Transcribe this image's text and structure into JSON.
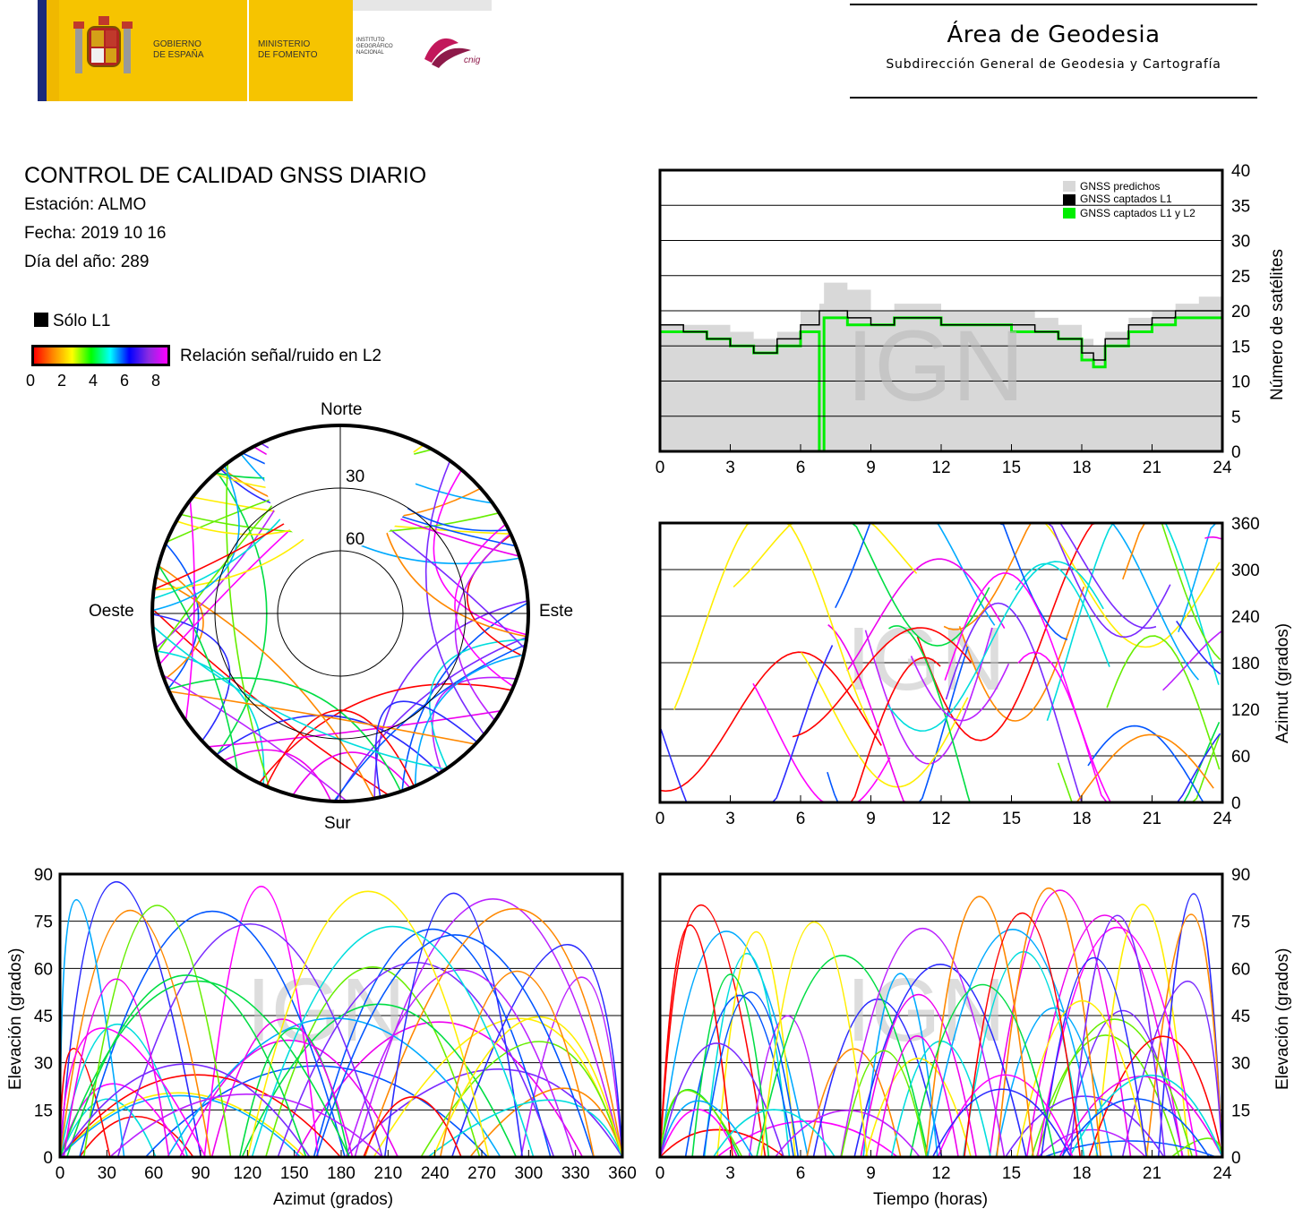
{
  "header": {
    "gov1": "GOBIERNO",
    "gov2": "DE ESPAÑA",
    "min1": "MINISTERIO",
    "min2": "DE FOMENTO",
    "ign1": "INSTITUTO",
    "ign2": "GEOGRÁFICO",
    "ign3": "NACIONAL",
    "cnig": "cnig",
    "area": "Área de Geodesia",
    "subarea": "Subdirección General de Geodesia y Cartografía"
  },
  "report": {
    "title": "CONTROL DE CALIDAD GNSS DIARIO",
    "station": "Estación: ALMO",
    "date": "Fecha: 2019 10 16",
    "doy": "Día del año: 289",
    "only_l1": "Sólo L1",
    "snr_label": "Relación señal/ruido en L2",
    "snr_ticks": [
      "0",
      "2",
      "4",
      "6",
      "8"
    ]
  },
  "watermark": "IGN",
  "colors": {
    "predicted": "#d8d8d8",
    "l1": "#000000",
    "l1l2": "#00ee00",
    "snr_scale": [
      "#ff0000",
      "#ffff00",
      "#00ff00",
      "#00ffff",
      "#0000ff",
      "#ff00ff"
    ]
  },
  "chart_data": [
    {
      "id": "satellites",
      "type": "area",
      "xlim": [
        0,
        24
      ],
      "ylim": [
        0,
        40
      ],
      "x_ticks": [
        "0",
        "3",
        "6",
        "9",
        "12",
        "15",
        "18",
        "21",
        "24"
      ],
      "y_ticks": [
        "0",
        "5",
        "10",
        "15",
        "20",
        "25",
        "30",
        "35",
        "40"
      ],
      "ylabel": "Número de satélites",
      "legend": [
        "GNSS predichos",
        "GNSS captados L1",
        "GNSS captados L1 y L2"
      ],
      "legend_position": "top-right",
      "grid": true,
      "x": [
        0,
        1,
        2,
        3,
        4,
        5,
        6,
        6.8,
        7,
        8,
        9,
        10,
        11,
        12,
        13,
        14,
        15,
        16,
        17,
        18,
        18.5,
        19,
        20,
        21,
        22,
        23,
        24
      ],
      "series": [
        {
          "name": "GNSS predichos",
          "values": [
            18,
            18,
            18,
            17,
            16,
            17,
            20,
            21,
            24,
            23,
            20,
            21,
            21,
            20,
            20,
            20,
            20,
            19,
            18,
            16,
            15,
            17,
            19,
            20,
            21,
            22,
            18
          ]
        },
        {
          "name": "GNSS captados L1",
          "values": [
            18,
            17,
            16,
            15,
            14,
            16,
            18,
            20,
            20,
            19,
            18,
            19,
            19,
            18,
            18,
            18,
            18,
            17,
            16,
            14,
            13,
            16,
            18,
            19,
            20,
            20,
            17
          ]
        },
        {
          "name": "GNSS captados L1 y L2",
          "values": [
            17,
            17,
            16,
            15,
            14,
            15,
            17,
            0,
            19,
            18,
            18,
            19,
            19,
            18,
            18,
            18,
            17,
            17,
            16,
            13,
            12,
            15,
            17,
            18,
            19,
            19,
            17
          ]
        }
      ]
    },
    {
      "id": "skyplot",
      "type": "scatter",
      "labels": {
        "n": "Norte",
        "s": "Sur",
        "w": "Oeste",
        "e": "Este"
      },
      "ring_labels": [
        "30",
        "60"
      ]
    },
    {
      "id": "azimuth_time",
      "type": "line",
      "xlim": [
        0,
        24
      ],
      "ylim": [
        0,
        360
      ],
      "x_ticks": [
        "0",
        "3",
        "6",
        "9",
        "12",
        "15",
        "18",
        "21",
        "24"
      ],
      "y_ticks": [
        "0",
        "60",
        "120",
        "180",
        "240",
        "300",
        "360"
      ],
      "ylabel": "Azimut (grados)",
      "grid": true
    },
    {
      "id": "elev_azimuth",
      "type": "line",
      "xlim": [
        0,
        360
      ],
      "ylim": [
        0,
        90
      ],
      "x_ticks": [
        "0",
        "30",
        "60",
        "90",
        "120",
        "150",
        "180",
        "210",
        "240",
        "270",
        "300",
        "330",
        "360"
      ],
      "y_ticks": [
        "0",
        "15",
        "30",
        "45",
        "60",
        "75",
        "90"
      ],
      "xlabel": "Azimut (grados)",
      "ylabel": "Elevación (grados)",
      "grid": true
    },
    {
      "id": "elev_time",
      "type": "line",
      "xlim": [
        0,
        24
      ],
      "ylim": [
        0,
        90
      ],
      "x_ticks": [
        "0",
        "3",
        "6",
        "9",
        "12",
        "15",
        "18",
        "21",
        "24"
      ],
      "y_ticks": [
        "0",
        "15",
        "30",
        "45",
        "60",
        "75",
        "90"
      ],
      "xlabel": "Tiempo (horas)",
      "ylabel": "Elevación (grados)",
      "grid": true
    }
  ]
}
